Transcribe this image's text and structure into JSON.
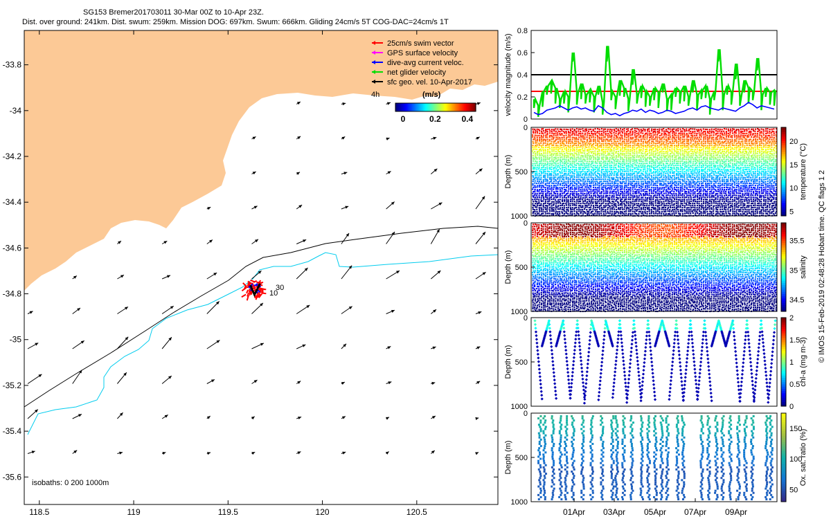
{
  "header": {
    "title_line1": "SG153 Bremer201703011 30-Mar 00Z to 10-Apr 23Z.",
    "title_line2": "Dist. over ground: 241km. Dist. swum: 259km. Mission DOG: 697km. Swum: 666km. Gliding 24cm/s 5T COG-DAC=24cm/s 1T"
  },
  "credit": "© IMOS 15-Feb-2019 02:48:28 Hobart time. QC flags 1  2",
  "colors": {
    "land": "#fcc996",
    "swim_vector": "#ff0000",
    "gps_velocity": "#ff00ff",
    "dive_avg_current": "#0000ff",
    "net_glider_velocity": "#00dd00",
    "sfc_geo_velocity": "#000000",
    "isobath_200": "#000000",
    "isobath_1000": "#00ccee"
  },
  "chart_data": [
    {
      "type": "map",
      "xlim": [
        118.42,
        120.93
      ],
      "ylim": [
        -35.72,
        -33.65
      ],
      "x_ticks": [
        "118.5",
        "119",
        "119.5",
        "120",
        "120.5"
      ],
      "y_ticks": [
        "-33.8",
        "-34",
        "-34.2",
        "-34.4",
        "-34.6",
        "-34.8",
        "-35",
        "-35.2",
        "-35.4",
        "-35.6"
      ],
      "legend": [
        {
          "label": "25cm/s swim vector",
          "color_key": "swim_vector"
        },
        {
          "label": "GPS surface velocity",
          "color_key": "gps_velocity"
        },
        {
          "label": "dive-avg current veloc.",
          "color_key": "dive_avg_current"
        },
        {
          "label": "net glider velocity",
          "color_key": "net_glider_velocity"
        },
        {
          "label": "sfc geo. vel. 10-Apr-2017",
          "color_key": "sfc_geo_velocity"
        }
      ],
      "legend_placement": "top-right",
      "colorbar": {
        "label": "(m/s)",
        "ticks": [
          "0",
          "0.2",
          "0.4"
        ],
        "range": [
          0,
          0.5
        ],
        "corner_label": "4h"
      },
      "glider_position": {
        "lon": 119.64,
        "lat": -34.78
      },
      "glider_labels": [
        "30",
        "10"
      ],
      "isobaths_label": "isobaths: 0   200   1000m"
    },
    {
      "type": "line",
      "ylabel": "velocity magnitude (m/s)",
      "ylim": [
        0,
        0.8
      ],
      "y_ticks": [
        "0",
        "0.2",
        "0.4",
        "0.6",
        "0.8"
      ],
      "reference_lines": [
        {
          "value": 0.4,
          "color": "#000000"
        },
        {
          "value": 0.25,
          "color": "#ff0000"
        }
      ],
      "series": [
        {
          "color_key": "net_glider_velocity",
          "values": [
            0.18,
            0.12,
            0.25,
            0.3,
            0.34,
            0.28,
            0.18,
            0.25,
            0.2,
            0.6,
            0.24,
            0.32,
            0.22,
            0.26,
            0.2,
            0.3,
            0.15,
            0.66,
            0.25,
            0.2,
            0.35,
            0.28,
            0.18,
            0.45,
            0.22,
            0.3,
            0.25,
            0.2,
            0.28,
            0.24,
            0.32,
            0.18,
            0.22,
            0.28,
            0.25,
            0.3,
            0.2,
            0.35,
            0.22,
            0.26,
            0.3,
            0.18,
            0.25,
            0.63,
            0.22,
            0.3,
            0.24,
            0.5,
            0.2,
            0.35,
            0.28,
            0.25,
            0.55,
            0.22,
            0.28,
            0.24,
            0.26
          ]
        },
        {
          "color_key": "dive_avg_current",
          "values": [
            0.06,
            0.04,
            0.05,
            0.08,
            0.09,
            0.1,
            0.12,
            0.1,
            0.08,
            0.1,
            0.11,
            0.09,
            0.1,
            0.08,
            0.07,
            0.12,
            0.1,
            0.06,
            0.04,
            0.05,
            0.03,
            0.05,
            0.06,
            0.08,
            0.07,
            0.09,
            0.06,
            0.08,
            0.07,
            0.05,
            0.06,
            0.08,
            0.07,
            0.05,
            0.06,
            0.07,
            0.09,
            0.1,
            0.08,
            0.11,
            0.12,
            0.1,
            0.09,
            0.08,
            0.1,
            0.09,
            0.08,
            0.07,
            0.1,
            0.12,
            0.15,
            0.13,
            0.1,
            0.12,
            0.11,
            0.1,
            0.09
          ]
        }
      ]
    },
    {
      "type": "scatter",
      "ylabel": "Depth (m)",
      "ylim": [
        0,
        1000
      ],
      "y_ticks": [
        "0",
        "500",
        "1000"
      ],
      "colorbar": {
        "label": "temperature (°C)",
        "range": [
          4,
          23
        ],
        "ticks": [
          "5",
          "10",
          "15",
          "20"
        ]
      }
    },
    {
      "type": "scatter",
      "ylabel": "Depth (m)",
      "ylim": [
        0,
        1000
      ],
      "y_ticks": [
        "0",
        "500",
        "1000"
      ],
      "colorbar": {
        "label": "salinity",
        "range": [
          34.3,
          35.8
        ],
        "ticks": [
          "34.5",
          "35",
          "35.5"
        ]
      }
    },
    {
      "type": "scatter",
      "ylabel": "Depth (m)",
      "ylim": [
        0,
        1000
      ],
      "y_ticks": [
        "0",
        "500",
        "1000"
      ],
      "colorbar": {
        "label": "chl-a (mg m-3)",
        "range": [
          0,
          2
        ],
        "ticks": [
          "0",
          "0.5",
          "1",
          "1.5",
          "2"
        ]
      }
    },
    {
      "type": "scatter",
      "ylabel": "Depth (m)",
      "ylim": [
        0,
        1000
      ],
      "y_ticks": [
        "0",
        "500",
        "1000"
      ],
      "x_ticks": [
        "01Apr",
        "03Apr",
        "05Apr",
        "07Apr",
        "09Apr"
      ],
      "colorbar": {
        "label": "Ox. sat. ratio (%)",
        "range": [
          30,
          175
        ],
        "ticks": [
          "50",
          "100",
          "150"
        ]
      }
    }
  ]
}
